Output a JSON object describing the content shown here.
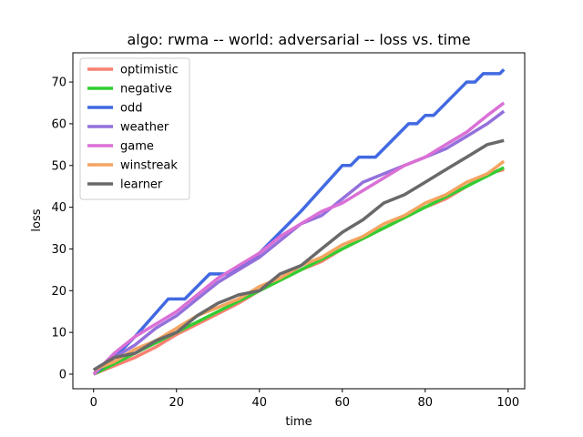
{
  "chart_data": {
    "type": "line",
    "title": "algo: rwma -- world: adversarial -- loss vs. time",
    "xlabel": "time",
    "ylabel": "loss",
    "xlim": [
      -5,
      104
    ],
    "ylim": [
      -3.5,
      77
    ],
    "xticks": [
      0,
      20,
      40,
      60,
      80,
      100
    ],
    "yticks": [
      0,
      10,
      20,
      30,
      40,
      50,
      60,
      70
    ],
    "grid": false,
    "legend_position": "upper-left",
    "series": [
      {
        "name": "optimistic",
        "color": "#fa8072",
        "points": [
          [
            0,
            0
          ],
          [
            5,
            2
          ],
          [
            10,
            4
          ],
          [
            15,
            6.5
          ],
          [
            20,
            9.5
          ],
          [
            25,
            12
          ],
          [
            30,
            14.5
          ],
          [
            35,
            17
          ],
          [
            40,
            20
          ],
          [
            45,
            22.5
          ],
          [
            50,
            25
          ],
          [
            55,
            27
          ],
          [
            60,
            30
          ],
          [
            65,
            32.5
          ],
          [
            70,
            35
          ],
          [
            75,
            37.5
          ],
          [
            80,
            40
          ],
          [
            85,
            42
          ],
          [
            90,
            45
          ],
          [
            95,
            48
          ],
          [
            99,
            49
          ]
        ]
      },
      {
        "name": "negative",
        "color": "#32cd32",
        "points": [
          [
            0,
            0
          ],
          [
            10,
            5
          ],
          [
            20,
            10
          ],
          [
            30,
            15
          ],
          [
            40,
            20
          ],
          [
            50,
            25
          ],
          [
            60,
            30
          ],
          [
            70,
            35
          ],
          [
            80,
            40
          ],
          [
            90,
            45
          ],
          [
            99,
            49.5
          ]
        ]
      },
      {
        "name": "odd",
        "color": "#4169e1",
        "points": [
          [
            0,
            0
          ],
          [
            5,
            4
          ],
          [
            10,
            9
          ],
          [
            18,
            18
          ],
          [
            22,
            18
          ],
          [
            28,
            24
          ],
          [
            32,
            24
          ],
          [
            38,
            27
          ],
          [
            50,
            39
          ],
          [
            60,
            50
          ],
          [
            62,
            50
          ],
          [
            64,
            52
          ],
          [
            68,
            52
          ],
          [
            76,
            60
          ],
          [
            78,
            60
          ],
          [
            80,
            62
          ],
          [
            82,
            62
          ],
          [
            90,
            70
          ],
          [
            92,
            70
          ],
          [
            94,
            72
          ],
          [
            98,
            72
          ],
          [
            99,
            73
          ]
        ]
      },
      {
        "name": "weather",
        "color": "#9370db",
        "points": [
          [
            0,
            1
          ],
          [
            5,
            4
          ],
          [
            10,
            7
          ],
          [
            15,
            11
          ],
          [
            20,
            14
          ],
          [
            25,
            18
          ],
          [
            30,
            22
          ],
          [
            35,
            25
          ],
          [
            40,
            28
          ],
          [
            45,
            32
          ],
          [
            50,
            36
          ],
          [
            55,
            38
          ],
          [
            60,
            42
          ],
          [
            65,
            46
          ],
          [
            70,
            48
          ],
          [
            75,
            50
          ],
          [
            80,
            52
          ],
          [
            85,
            54
          ],
          [
            90,
            57
          ],
          [
            95,
            60
          ],
          [
            99,
            63
          ]
        ]
      },
      {
        "name": "game",
        "color": "#da70d6",
        "points": [
          [
            0,
            0
          ],
          [
            5,
            5
          ],
          [
            10,
            9
          ],
          [
            15,
            12
          ],
          [
            20,
            15
          ],
          [
            25,
            19
          ],
          [
            30,
            23
          ],
          [
            35,
            26
          ],
          [
            40,
            29
          ],
          [
            45,
            33
          ],
          [
            50,
            36
          ],
          [
            55,
            39
          ],
          [
            60,
            41
          ],
          [
            65,
            44
          ],
          [
            70,
            47
          ],
          [
            75,
            50
          ],
          [
            80,
            52
          ],
          [
            85,
            55
          ],
          [
            90,
            58
          ],
          [
            95,
            62
          ],
          [
            99,
            65
          ]
        ]
      },
      {
        "name": "winstreak",
        "color": "#f4a460",
        "points": [
          [
            0,
            1
          ],
          [
            5,
            3
          ],
          [
            10,
            6
          ],
          [
            15,
            8
          ],
          [
            20,
            11
          ],
          [
            25,
            14
          ],
          [
            30,
            16
          ],
          [
            35,
            18
          ],
          [
            40,
            21
          ],
          [
            45,
            23
          ],
          [
            50,
            26
          ],
          [
            55,
            28
          ],
          [
            60,
            31
          ],
          [
            65,
            33
          ],
          [
            70,
            36
          ],
          [
            75,
            38
          ],
          [
            80,
            41
          ],
          [
            85,
            43
          ],
          [
            90,
            46
          ],
          [
            95,
            48
          ],
          [
            99,
            51
          ]
        ]
      },
      {
        "name": "learner",
        "color": "#696969",
        "points": [
          [
            0,
            1
          ],
          [
            5,
            4
          ],
          [
            10,
            5
          ],
          [
            15,
            8
          ],
          [
            20,
            10
          ],
          [
            25,
            14
          ],
          [
            30,
            17
          ],
          [
            35,
            19
          ],
          [
            40,
            20
          ],
          [
            45,
            24
          ],
          [
            50,
            26
          ],
          [
            55,
            30
          ],
          [
            60,
            34
          ],
          [
            65,
            37
          ],
          [
            70,
            41
          ],
          [
            75,
            43
          ],
          [
            80,
            46
          ],
          [
            85,
            49
          ],
          [
            90,
            52
          ],
          [
            95,
            55
          ],
          [
            99,
            56
          ]
        ]
      }
    ]
  }
}
